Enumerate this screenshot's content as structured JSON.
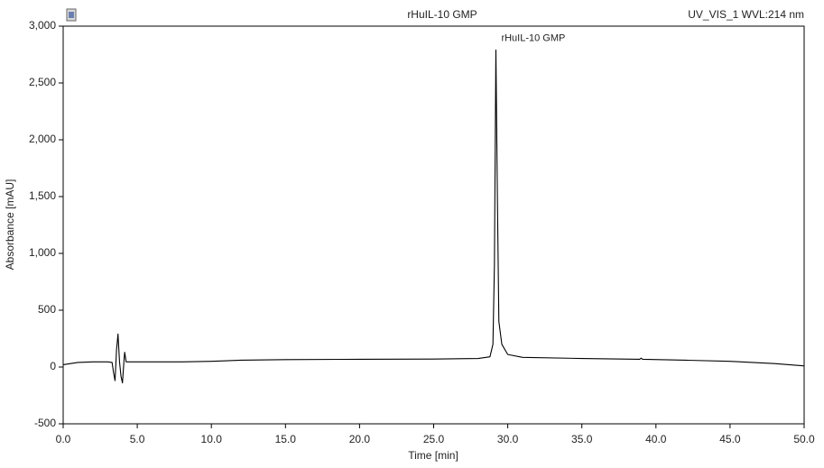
{
  "chart_data": {
    "type": "line",
    "title": "rHuIL-10 GMP",
    "subtitle": "UV_VIS_1 WVL:214 nm",
    "peak_label": "rHuIL-10 GMP",
    "x_label": "Time [min]",
    "y_label": "Absorbance [mAU]",
    "color": "#000000",
    "x": [
      0,
      1,
      2,
      3,
      3.3,
      3.4,
      3.5,
      3.6,
      3.7,
      3.8,
      3.9,
      4.0,
      4.1,
      4.15,
      4.25,
      5,
      8,
      10,
      12,
      15,
      20,
      25,
      28,
      28.8,
      29.0,
      29.1,
      29.2,
      29.3,
      29.4,
      29.6,
      30,
      31,
      35,
      38.9,
      39,
      39.1,
      42,
      45,
      48,
      50
    ],
    "values": [
      20,
      40,
      45,
      45,
      40,
      -50,
      -120,
      150,
      290,
      50,
      -80,
      -140,
      50,
      130,
      45,
      45,
      45,
      50,
      60,
      65,
      68,
      70,
      75,
      90,
      200,
      900,
      2790,
      1500,
      400,
      200,
      110,
      85,
      75,
      68,
      78,
      68,
      60,
      50,
      30,
      10
    ],
    "xlim": [
      0,
      50
    ],
    "ylim": [
      -500,
      3000
    ],
    "xticks": [
      {
        "value": 0,
        "label": "0.0"
      },
      {
        "value": 5,
        "label": "5.0"
      },
      {
        "value": 10,
        "label": "10.0"
      },
      {
        "value": 15,
        "label": "15.0"
      },
      {
        "value": 20,
        "label": "20.0"
      },
      {
        "value": 25,
        "label": "25.0"
      },
      {
        "value": 30,
        "label": "30.0"
      },
      {
        "value": 35,
        "label": "35.0"
      },
      {
        "value": 40,
        "label": "40.0"
      },
      {
        "value": 45,
        "label": "45.0"
      },
      {
        "value": 50,
        "label": "50.0"
      }
    ],
    "yticks": [
      -500,
      0,
      500,
      {
        "value": 1000,
        "label": "1,000"
      },
      {
        "value": 1500,
        "label": "1,500"
      },
      {
        "value": 2000,
        "label": "2,000"
      },
      {
        "value": 2500,
        "label": "2,500"
      },
      {
        "value": 3000,
        "label": "3,000"
      }
    ]
  }
}
